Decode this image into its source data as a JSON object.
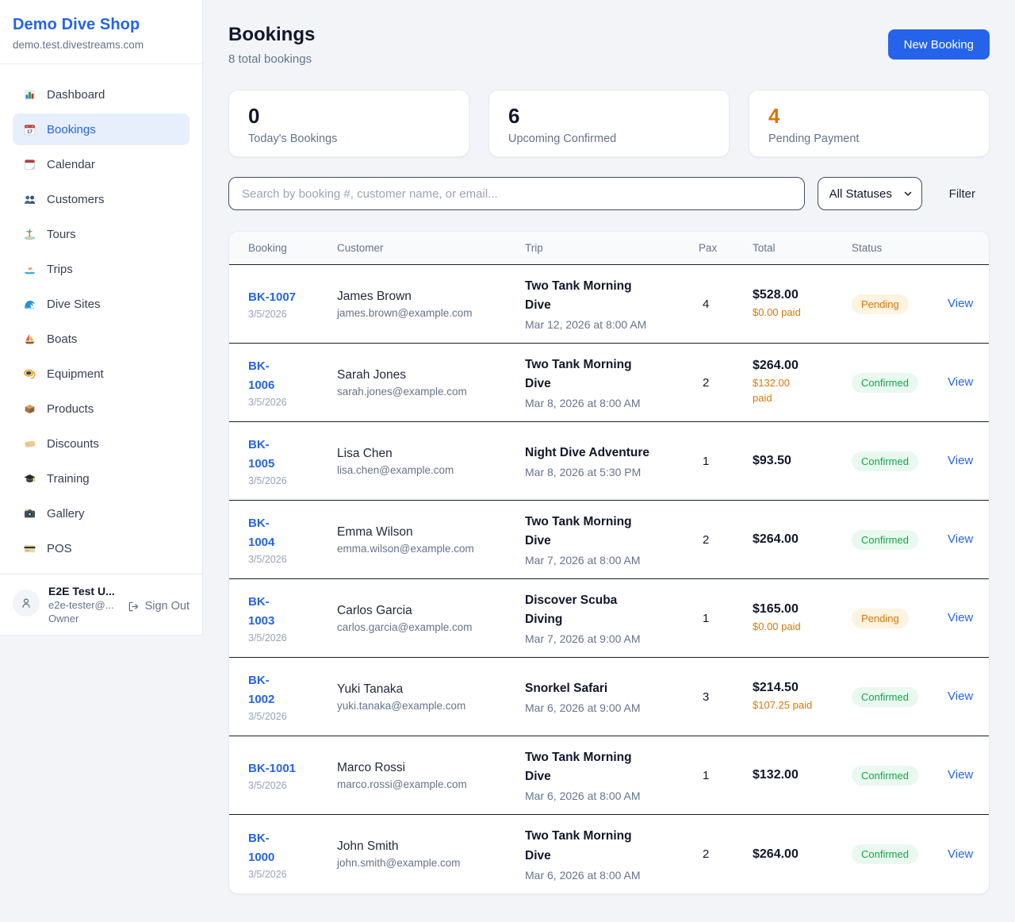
{
  "sidebar": {
    "title": "Demo Dive Shop",
    "domain": "demo.test.divestreams.com",
    "items": [
      {
        "icon": "dashboard-chart-icon",
        "label": "Dashboard",
        "active": false
      },
      {
        "icon": "bookings-calendar-icon",
        "label": "Bookings",
        "active": true
      },
      {
        "icon": "calendar-icon",
        "label": "Calendar",
        "active": false
      },
      {
        "icon": "customers-icon",
        "label": "Customers",
        "active": false
      },
      {
        "icon": "tours-island-icon",
        "label": "Tours",
        "active": false
      },
      {
        "icon": "trips-speedboat-icon",
        "label": "Trips",
        "active": false
      },
      {
        "icon": "dive-sites-wave-icon",
        "label": "Dive Sites",
        "active": false
      },
      {
        "icon": "boats-sailboat-icon",
        "label": "Boats",
        "active": false
      },
      {
        "icon": "equipment-mask-icon",
        "label": "Equipment",
        "active": false
      },
      {
        "icon": "products-box-icon",
        "label": "Products",
        "active": false
      },
      {
        "icon": "discounts-tag-icon",
        "label": "Discounts",
        "active": false
      },
      {
        "icon": "training-cap-icon",
        "label": "Training",
        "active": false
      },
      {
        "icon": "gallery-camera-icon",
        "label": "Gallery",
        "active": false
      },
      {
        "icon": "pos-card-icon",
        "label": "POS",
        "active": false
      }
    ],
    "user": {
      "name": "E2E Test U...",
      "email": "e2e-tester@...",
      "role": "Owner",
      "sign_out_label": "Sign Out"
    }
  },
  "header": {
    "title": "Bookings",
    "subtitle": "8 total bookings",
    "new_booking_label": "New Booking"
  },
  "stats": [
    {
      "value": "0",
      "label": "Today's Bookings",
      "value_color": "dark"
    },
    {
      "value": "6",
      "label": "Upcoming Confirmed",
      "value_color": "dark"
    },
    {
      "value": "4",
      "label": "Pending Payment",
      "value_color": "orange"
    }
  ],
  "filters": {
    "search_placeholder": "Search by booking #, customer name, or email...",
    "status_select_value": "All Statuses",
    "filter_label": "Filter"
  },
  "table": {
    "columns": [
      "Booking",
      "Customer",
      "Trip",
      "Pax",
      "Total",
      "Status"
    ],
    "view_label": "View",
    "rows": [
      {
        "id": "BK-1007",
        "date": "3/5/2026",
        "name": "James Brown",
        "email": "james.brown@example.com",
        "trip": "Two Tank Morning\nDive",
        "datetime": "Mar 12, 2026 at 8:00 AM",
        "pax": "4",
        "total": "$528.00",
        "paid": "$0.00 paid",
        "status": "Pending",
        "status_type": "pending",
        "view": "View"
      },
      {
        "id": "BK-\n1006",
        "date": "3/5/2026",
        "name": "Sarah Jones",
        "email": "sarah.jones@example.com",
        "trip": "Two Tank Morning\nDive",
        "datetime": "Mar 8, 2026 at 8:00 AM",
        "pax": "2",
        "total": "$264.00",
        "paid": "$132.00\npaid",
        "status": "Confirmed",
        "status_type": "confirmed",
        "view": "View"
      },
      {
        "id": "BK-\n1005",
        "date": "3/5/2026",
        "name": "Lisa Chen",
        "email": "lisa.chen@example.com",
        "trip": "Night Dive Adventure",
        "datetime": "Mar 8, 2026 at 5:30 PM",
        "pax": "1",
        "total": "$93.50",
        "paid": "",
        "status": "Confirmed",
        "status_type": "confirmed",
        "view": "View"
      },
      {
        "id": "BK-\n1004",
        "date": "3/5/2026",
        "name": "Emma Wilson",
        "email": "emma.wilson@example.com",
        "trip": "Two Tank Morning\nDive",
        "datetime": "Mar 7, 2026 at 8:00 AM",
        "pax": "2",
        "total": "$264.00",
        "paid": "",
        "status": "Confirmed",
        "status_type": "confirmed",
        "view": "View"
      },
      {
        "id": "BK-\n1003",
        "date": "3/5/2026",
        "name": "Carlos Garcia",
        "email": "carlos.garcia@example.com",
        "trip": "Discover Scuba\nDiving",
        "datetime": "Mar 7, 2026 at 9:00 AM",
        "pax": "1",
        "total": "$165.00",
        "paid": "$0.00 paid",
        "status": "Pending",
        "status_type": "pending",
        "view": "View"
      },
      {
        "id": "BK-\n1002",
        "date": "3/5/2026",
        "name": "Yuki Tanaka",
        "email": "yuki.tanaka@example.com",
        "trip": "Snorkel Safari",
        "datetime": "Mar 6, 2026 at 9:00 AM",
        "pax": "3",
        "total": "$214.50",
        "paid": "$107.25 paid",
        "status": "Confirmed",
        "status_type": "confirmed",
        "view": "View"
      },
      {
        "id": "BK-1001",
        "date": "3/5/2026",
        "name": "Marco Rossi",
        "email": "marco.rossi@example.com",
        "trip": "Two Tank Morning\nDive",
        "datetime": "Mar 6, 2026 at 8:00 AM",
        "pax": "1",
        "total": "$132.00",
        "paid": "",
        "status": "Confirmed",
        "status_type": "confirmed",
        "view": "View"
      },
      {
        "id": "BK-\n1000",
        "date": "3/5/2026",
        "name": "John Smith",
        "email": "john.smith@example.com",
        "trip": "Two Tank Morning\nDive",
        "datetime": "Mar 6, 2026 at 8:00 AM",
        "pax": "2",
        "total": "$264.00",
        "paid": "",
        "status": "Confirmed",
        "status_type": "confirmed",
        "view": "View"
      }
    ]
  },
  "colors": {
    "accent_blue": "#2563eb",
    "orange": "#d97706",
    "green": "#16a34a",
    "pending_badge_bg": "#fcf3e1",
    "confirmed_badge_bg": "#e9f9ef"
  }
}
